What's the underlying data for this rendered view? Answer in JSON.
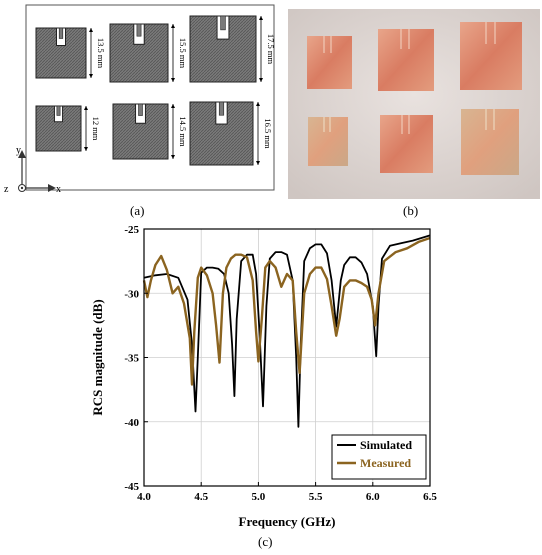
{
  "figure": {
    "label_a": "(a)",
    "label_b": "(b)",
    "label_c": "(c)"
  },
  "panel_a": {
    "patches": [
      {
        "dimension": "13.5 mm"
      },
      {
        "dimension": "15.5 mm"
      },
      {
        "dimension": "17.5 mm"
      },
      {
        "dimension": "12 mm"
      },
      {
        "dimension": "14.5 mm"
      },
      {
        "dimension": "16.5 mm"
      }
    ],
    "axes": {
      "y": "y",
      "x": "x",
      "z": "z"
    }
  },
  "chart_data": {
    "type": "line",
    "xlabel": "Frequency (GHz)",
    "ylabel": "RCS magnitude (dB)",
    "xlim": [
      4.0,
      6.5
    ],
    "ylim": [
      -45,
      -25
    ],
    "xticks": [
      4.0,
      4.5,
      5.0,
      5.5,
      6.0,
      6.5
    ],
    "yticks": [
      -45,
      -40,
      -35,
      -30,
      -25
    ],
    "xtick_labels": [
      "4.0",
      "4.5",
      "5.0",
      "5.5",
      "6.0",
      "6.5"
    ],
    "ytick_labels": [
      "-45",
      "-40",
      "-35",
      "-30",
      "-25"
    ],
    "grid": true,
    "legend_position": "bottom-right",
    "series": [
      {
        "name": "Simulated",
        "color": "#000000",
        "x": [
          4.0,
          4.1,
          4.2,
          4.3,
          4.38,
          4.42,
          4.45,
          4.47,
          4.5,
          4.55,
          4.6,
          4.65,
          4.7,
          4.74,
          4.77,
          4.79,
          4.81,
          4.85,
          4.9,
          4.95,
          4.98,
          5.01,
          5.04,
          5.07,
          5.1,
          5.15,
          5.2,
          5.25,
          5.3,
          5.33,
          5.35,
          5.37,
          5.4,
          5.45,
          5.5,
          5.55,
          5.6,
          5.64,
          5.68,
          5.72,
          5.75,
          5.8,
          5.85,
          5.9,
          5.95,
          6.0,
          6.03,
          6.05,
          6.08,
          6.15,
          6.25,
          6.35,
          6.5
        ],
        "y": [
          -28.8,
          -28.6,
          -28.5,
          -28.8,
          -30.5,
          -34.0,
          -39.2,
          -35.0,
          -28.4,
          -28.0,
          -28.0,
          -28.1,
          -28.5,
          -30.0,
          -34.0,
          -38.0,
          -32.0,
          -27.5,
          -27.0,
          -27.0,
          -28.5,
          -33.0,
          -38.8,
          -31.0,
          -27.3,
          -26.8,
          -26.8,
          -27.0,
          -29.0,
          -35.0,
          -40.4,
          -34.0,
          -27.5,
          -26.5,
          -26.2,
          -26.2,
          -26.9,
          -29.0,
          -32.6,
          -29.0,
          -27.8,
          -27.2,
          -27.2,
          -27.6,
          -28.5,
          -31.0,
          -34.9,
          -31.0,
          -27.3,
          -26.3,
          -26.1,
          -25.9,
          -25.5
        ]
      },
      {
        "name": "Measured",
        "color": "#8b6420",
        "x": [
          4.0,
          4.03,
          4.06,
          4.1,
          4.15,
          4.2,
          4.25,
          4.3,
          4.35,
          4.4,
          4.42,
          4.44,
          4.47,
          4.5,
          4.55,
          4.6,
          4.63,
          4.66,
          4.69,
          4.72,
          4.76,
          4.8,
          4.85,
          4.9,
          4.95,
          4.98,
          5.0,
          5.03,
          5.06,
          5.1,
          5.15,
          5.2,
          5.25,
          5.3,
          5.33,
          5.36,
          5.4,
          5.45,
          5.5,
          5.55,
          5.6,
          5.64,
          5.68,
          5.71,
          5.75,
          5.8,
          5.85,
          5.9,
          5.95,
          5.99,
          6.02,
          6.05,
          6.1,
          6.2,
          6.3,
          6.4,
          6.5
        ],
        "y": [
          -29.0,
          -30.3,
          -29.0,
          -27.8,
          -27.1,
          -28.2,
          -30.0,
          -29.5,
          -30.8,
          -33.5,
          -37.1,
          -33.0,
          -28.8,
          -28.0,
          -28.6,
          -30.0,
          -32.5,
          -35.4,
          -30.0,
          -28.0,
          -27.3,
          -27.0,
          -27.0,
          -27.2,
          -29.0,
          -33.0,
          -35.3,
          -32.0,
          -28.0,
          -27.5,
          -28.0,
          -29.5,
          -28.5,
          -29.0,
          -33.0,
          -36.2,
          -30.0,
          -28.5,
          -28.0,
          -28.0,
          -28.9,
          -31.0,
          -33.3,
          -32.0,
          -29.5,
          -29.0,
          -29.0,
          -29.2,
          -29.5,
          -30.5,
          -32.5,
          -30.0,
          -27.5,
          -26.8,
          -26.5,
          -26.0,
          -25.7
        ]
      }
    ]
  }
}
